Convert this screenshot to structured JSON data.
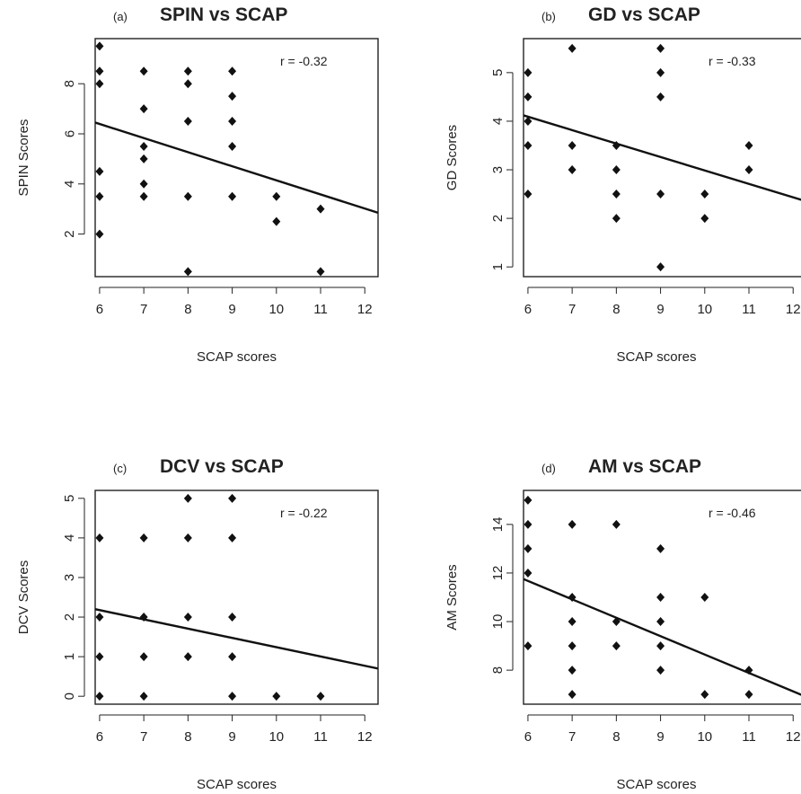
{
  "chart_data": [
    {
      "type": "scatter",
      "panel_label": "(a)",
      "title": "SPIN vs SCAP",
      "xlabel": "SCAP scores",
      "ylabel": "SPIN Scores",
      "annotation": "r = -0.32",
      "xlim": [
        5.9,
        12.3
      ],
      "ylim": [
        0.3,
        9.8
      ],
      "xticks": [
        6,
        7,
        8,
        9,
        10,
        11,
        12
      ],
      "yticks": [
        2,
        4,
        6,
        8
      ],
      "points": [
        [
          6,
          9.5
        ],
        [
          6,
          8.5
        ],
        [
          6,
          8
        ],
        [
          6,
          4.5
        ],
        [
          6,
          3.5
        ],
        [
          6,
          2
        ],
        [
          7,
          8.5
        ],
        [
          7,
          7
        ],
        [
          7,
          5.5
        ],
        [
          7,
          5
        ],
        [
          7,
          4
        ],
        [
          7,
          3.5
        ],
        [
          8,
          8.5
        ],
        [
          8,
          8
        ],
        [
          8,
          6.5
        ],
        [
          8,
          3.5
        ],
        [
          8,
          0.5
        ],
        [
          9,
          8.5
        ],
        [
          9,
          7.5
        ],
        [
          9,
          6.5
        ],
        [
          9,
          5.5
        ],
        [
          9,
          3.5
        ],
        [
          10,
          3.5
        ],
        [
          10,
          2.5
        ],
        [
          11,
          3
        ],
        [
          11,
          0.5
        ]
      ],
      "fit_line": {
        "x": [
          5.9,
          12.3
        ],
        "y": [
          6.45,
          2.85
        ]
      },
      "grid": false
    },
    {
      "type": "scatter",
      "panel_label": "(b)",
      "title": "GD vs SCAP",
      "xlabel": "SCAP scores",
      "ylabel": "GD Scores",
      "annotation": "r = -0.33",
      "xlim": [
        5.9,
        12.3
      ],
      "ylim": [
        0.8,
        5.7
      ],
      "xticks": [
        6,
        7,
        8,
        9,
        10,
        11,
        12
      ],
      "yticks": [
        1,
        2,
        3,
        4,
        5
      ],
      "points": [
        [
          6,
          5
        ],
        [
          6,
          4.5
        ],
        [
          6,
          4
        ],
        [
          6,
          3.5
        ],
        [
          6,
          2.5
        ],
        [
          7,
          5.5
        ],
        [
          7,
          3.5
        ],
        [
          7,
          3
        ],
        [
          8,
          3.5
        ],
        [
          8,
          3
        ],
        [
          8,
          2.5
        ],
        [
          8,
          2
        ],
        [
          9,
          5.5
        ],
        [
          9,
          5
        ],
        [
          9,
          4.5
        ],
        [
          9,
          2.5
        ],
        [
          9,
          1
        ],
        [
          10,
          2.5
        ],
        [
          10,
          2
        ],
        [
          11,
          3.5
        ],
        [
          11,
          3
        ]
      ],
      "fit_line": {
        "x": [
          5.9,
          12.3
        ],
        "y": [
          4.12,
          2.35
        ]
      },
      "grid": false
    },
    {
      "type": "scatter",
      "panel_label": "(c)",
      "title": "DCV vs SCAP",
      "xlabel": "SCAP scores",
      "ylabel": "DCV Scores",
      "annotation": "r = -0.22",
      "xlim": [
        5.9,
        12.3
      ],
      "ylim": [
        -0.2,
        5.2
      ],
      "xticks": [
        6,
        7,
        8,
        9,
        10,
        11,
        12
      ],
      "yticks": [
        0,
        1,
        2,
        3,
        4,
        5
      ],
      "points": [
        [
          6,
          4
        ],
        [
          6,
          2
        ],
        [
          6,
          1
        ],
        [
          6,
          0
        ],
        [
          7,
          4
        ],
        [
          7,
          2
        ],
        [
          7,
          1
        ],
        [
          7,
          0
        ],
        [
          8,
          5
        ],
        [
          8,
          4
        ],
        [
          8,
          2
        ],
        [
          8,
          1
        ],
        [
          9,
          5
        ],
        [
          9,
          4
        ],
        [
          9,
          2
        ],
        [
          9,
          1
        ],
        [
          9,
          0
        ],
        [
          10,
          0
        ],
        [
          11,
          0
        ]
      ],
      "fit_line": {
        "x": [
          5.9,
          12.3
        ],
        "y": [
          2.2,
          0.7
        ]
      },
      "grid": false
    },
    {
      "type": "scatter",
      "panel_label": "(d)",
      "title": "AM vs SCAP",
      "xlabel": "SCAP scores",
      "ylabel": "AM Scores",
      "annotation": "r = -0.46",
      "xlim": [
        5.9,
        12.3
      ],
      "ylim": [
        6.6,
        15.4
      ],
      "xticks": [
        6,
        7,
        8,
        9,
        10,
        11,
        12
      ],
      "yticks": [
        8,
        10,
        12,
        14
      ],
      "points": [
        [
          6,
          15
        ],
        [
          6,
          14
        ],
        [
          6,
          13
        ],
        [
          6,
          12
        ],
        [
          6,
          9
        ],
        [
          7,
          14
        ],
        [
          7,
          11
        ],
        [
          7,
          10
        ],
        [
          7,
          9
        ],
        [
          7,
          8
        ],
        [
          7,
          7
        ],
        [
          8,
          14
        ],
        [
          8,
          10
        ],
        [
          8,
          9
        ],
        [
          9,
          13
        ],
        [
          9,
          11
        ],
        [
          9,
          10
        ],
        [
          9,
          9
        ],
        [
          9,
          8
        ],
        [
          10,
          11
        ],
        [
          10,
          7
        ],
        [
          11,
          8
        ],
        [
          11,
          7
        ]
      ],
      "fit_line": {
        "x": [
          5.9,
          12.3
        ],
        "y": [
          11.75,
          6.9
        ]
      },
      "grid": false
    }
  ]
}
